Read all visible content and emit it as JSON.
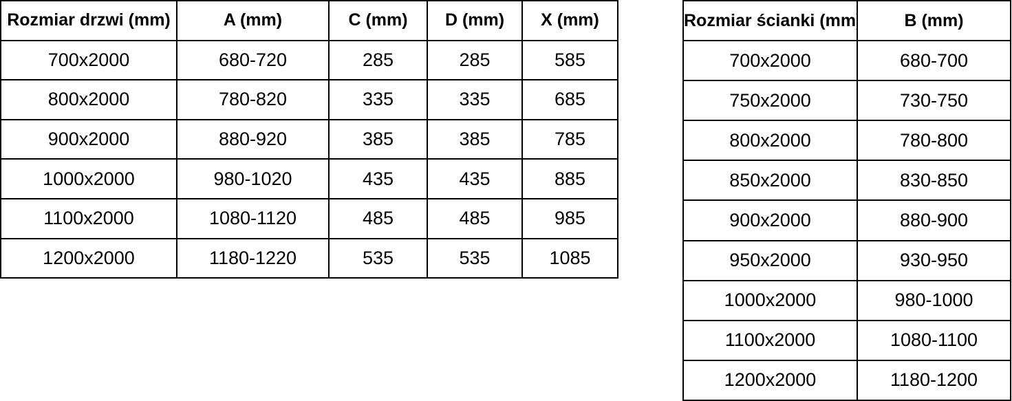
{
  "page": {
    "background_color": "#ffffff",
    "text_color": "#000000",
    "border_color": "#000000"
  },
  "door_table": {
    "columns": [
      "Rozmiar drzwi (mm)",
      "A (mm)",
      "C (mm)",
      "D (mm)",
      "X (mm)"
    ],
    "rows": [
      [
        "700x2000",
        "680-720",
        "285",
        "285",
        "585"
      ],
      [
        "800x2000",
        "780-820",
        "335",
        "335",
        "685"
      ],
      [
        "900x2000",
        "880-920",
        "385",
        "385",
        "785"
      ],
      [
        "1000x2000",
        "980-1020",
        "435",
        "435",
        "885"
      ],
      [
        "1100x2000",
        "1080-1120",
        "485",
        "485",
        "985"
      ],
      [
        "1200x2000",
        "1180-1220",
        "535",
        "535",
        "1085"
      ]
    ]
  },
  "wall_table": {
    "columns": [
      "Rozmiar ścianki (mm)",
      "B (mm)"
    ],
    "rows": [
      [
        "700x2000",
        "680-700"
      ],
      [
        "750x2000",
        "730-750"
      ],
      [
        "800x2000",
        "780-800"
      ],
      [
        "850x2000",
        "830-850"
      ],
      [
        "900x2000",
        "880-900"
      ],
      [
        "950x2000",
        "930-950"
      ],
      [
        "1000x2000",
        "980-1000"
      ],
      [
        "1100x2000",
        "1080-1100"
      ],
      [
        "1200x2000",
        "1180-1200"
      ]
    ]
  }
}
